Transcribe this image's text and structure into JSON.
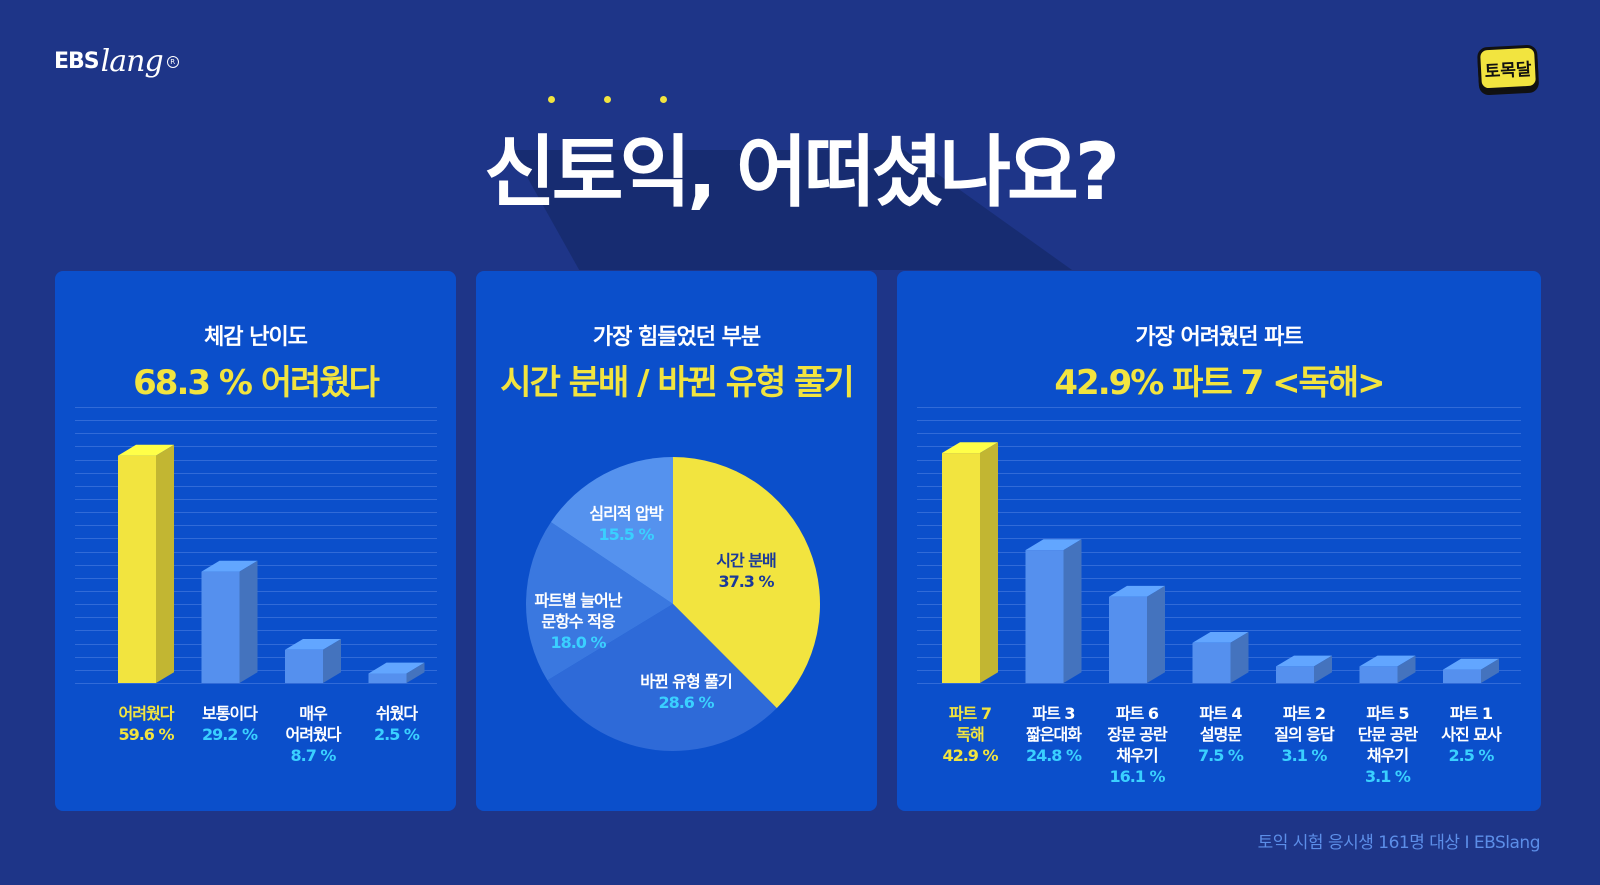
{
  "logo_left": {
    "main": "EBS",
    "script": "lang"
  },
  "logo_right": "토목달",
  "title": "신토익, 어떠셨나요?",
  "footnote": "토익 시험 응시생 161명 대상 I EBSlang",
  "colors": {
    "background": "#1e3588",
    "panel": "#0b4fcb",
    "highlight": "#f2e43f",
    "bar": "#5590ee",
    "pct": "#3ad0ff"
  },
  "panels": [
    {
      "subtitle": "체감 난이도",
      "headline": "68.3 % 어려웠다"
    },
    {
      "subtitle": "가장 힘들었던 부분",
      "headline": "시간 분배 / 바뀐 유형 풀기"
    },
    {
      "subtitle": "가장 어려웠던 파트",
      "headline": "42.9%  파트 7 <독해>"
    }
  ],
  "chart_data": [
    {
      "type": "bar",
      "categories": [
        [
          "어려웠다"
        ],
        [
          "보통이다"
        ],
        [
          "매우",
          "어려웠다"
        ],
        [
          "쉬웠다"
        ]
      ],
      "values": [
        59.6,
        29.2,
        8.7,
        2.5
      ],
      "value_labels": [
        "59.6 %",
        "29.2 %",
        "8.7 %",
        "2.5 %"
      ],
      "highlight_index": 0,
      "ylim": [
        0,
        65
      ]
    },
    {
      "type": "pie",
      "slices": [
        {
          "label": [
            "시간 분배"
          ],
          "value": 37.3,
          "value_label": "37.3 %",
          "color": "#f2e43f"
        },
        {
          "label": [
            "바뀐 유형 풀기"
          ],
          "value": 28.6,
          "value_label": "28.6 %",
          "color": "#2e6ad8"
        },
        {
          "label": [
            "파트별 늘어난",
            "문항수 적응"
          ],
          "value": 18.0,
          "value_label": "18.0 %",
          "color": "#3a78e0"
        },
        {
          "label": [
            "심리적 압박"
          ],
          "value": 15.5,
          "value_label": "15.5 %",
          "color": "#5592ee"
        }
      ]
    },
    {
      "type": "bar",
      "categories": [
        [
          "파트 7",
          "독해"
        ],
        [
          "파트 3",
          "짧은대화"
        ],
        [
          "파트 6",
          "장문 공란",
          "채우기"
        ],
        [
          "파트 4",
          "설명문"
        ],
        [
          "파트 2",
          "질의 응답"
        ],
        [
          "파트 5",
          "단문 공란",
          "채우기"
        ],
        [
          "파트 1",
          "사진 묘사"
        ]
      ],
      "values": [
        42.9,
        24.8,
        16.1,
        7.5,
        3.1,
        3.1,
        2.5
      ],
      "value_labels": [
        "42.9 %",
        "24.8 %",
        "16.1 %",
        "7.5 %",
        "3.1 %",
        "3.1 %",
        "2.5 %"
      ],
      "highlight_index": 0,
      "ylim": [
        0,
        50
      ]
    }
  ]
}
